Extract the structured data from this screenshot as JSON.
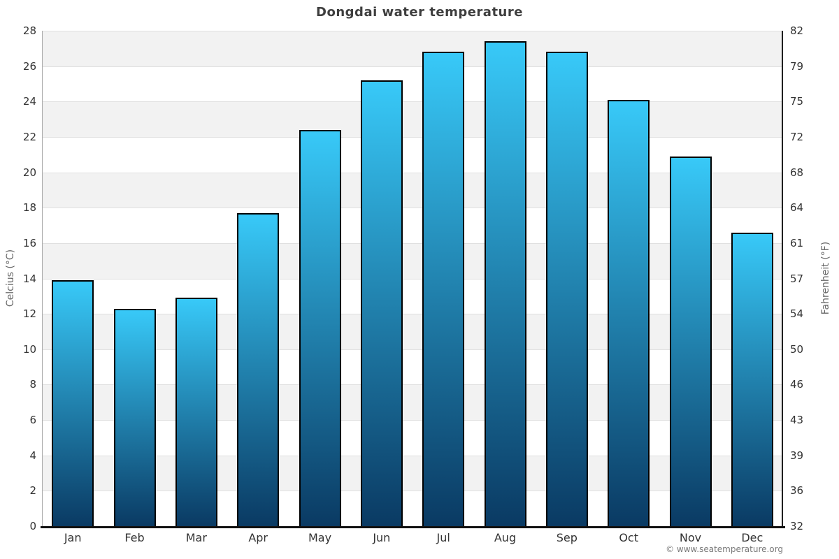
{
  "page": {
    "title": "Dongdai water temperature",
    "copyright": "© www.seatemperature.org"
  },
  "axes": {
    "left_label": "Celcius (°C)",
    "right_label": "Fahrenheit (°F)"
  },
  "chart_data": {
    "type": "bar",
    "title": "Dongdai water temperature",
    "categories": [
      "Jan",
      "Feb",
      "Mar",
      "Apr",
      "May",
      "Jun",
      "Jul",
      "Aug",
      "Sep",
      "Oct",
      "Nov",
      "Dec"
    ],
    "values": [
      13.9,
      12.3,
      12.9,
      17.7,
      22.4,
      25.2,
      26.8,
      27.4,
      26.8,
      24.1,
      20.9,
      16.6
    ],
    "xlabel": "",
    "ylabel_left": "Celcius (°C)",
    "ylabel_right": "Fahrenheit (°F)",
    "ylim": [
      0,
      28
    ],
    "celsius_ticks": [
      0,
      2,
      4,
      6,
      8,
      10,
      12,
      14,
      16,
      18,
      20,
      22,
      24,
      26,
      28
    ],
    "fahrenheit_ticks": [
      32,
      36,
      39,
      43,
      46,
      50,
      54,
      57,
      61,
      64,
      68,
      72,
      75,
      79,
      82
    ],
    "grid": "alternating horizontal shaded bands every 2°C with light gridlines",
    "legend": "none",
    "colors": {
      "bar_gradient_top": "#38c9f8",
      "bar_gradient_bottom": "#0a3a63",
      "bar_border": "#000000",
      "band_shade": "#f2f2f2",
      "grid_line": "#e0e0e0"
    }
  }
}
